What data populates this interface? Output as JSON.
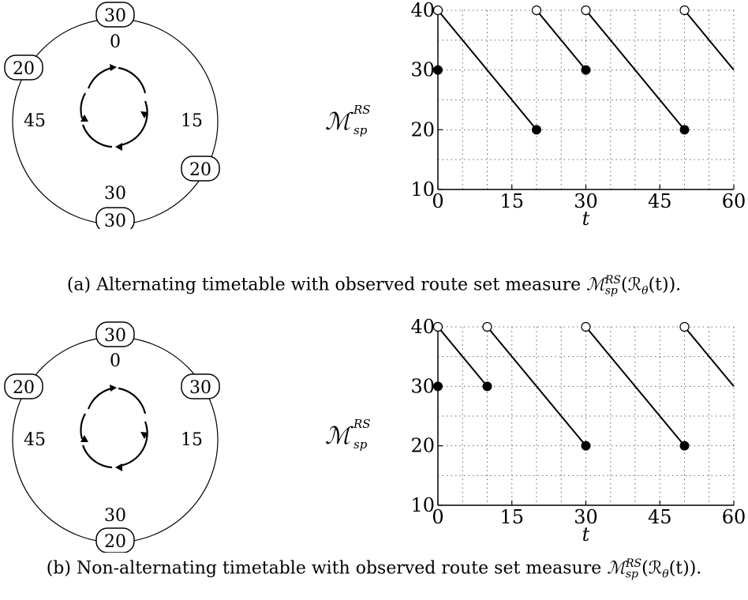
{
  "panels": [
    {
      "caption_prefix": "(a) Alternating timetable with observed route set measure",
      "measure_label": "ℳ",
      "measure_sup": "RS",
      "measure_sub": "sp",
      "caption_arg": "(ℛ",
      "caption_theta": "θ",
      "caption_tail": "(t)).",
      "ring": {
        "badges": [
          {
            "label": "30",
            "pos": "top"
          },
          {
            "label": "20",
            "pos": "upper-left"
          },
          {
            "label": "20",
            "pos": "lower-right"
          },
          {
            "label": "30",
            "pos": "bottom"
          }
        ],
        "segment_labels": [
          "0",
          "15",
          "30",
          "45"
        ]
      }
    },
    {
      "caption_prefix": "(b) Non-alternating timetable with observed route set measure",
      "measure_label": "ℳ",
      "measure_sup": "RS",
      "measure_sub": "sp",
      "caption_arg": "(ℛ",
      "caption_theta": "θ",
      "caption_tail": "(t)).",
      "ring": {
        "badges": [
          {
            "label": "30",
            "pos": "top"
          },
          {
            "label": "20",
            "pos": "upper-left"
          },
          {
            "label": "30",
            "pos": "upper-right"
          },
          {
            "label": "20",
            "pos": "bottom"
          }
        ],
        "segment_labels": [
          "0",
          "15",
          "30",
          "45"
        ]
      }
    }
  ],
  "chart_data": [
    {
      "type": "line",
      "xlabel": "t",
      "ylabel": "",
      "xlim": [
        0,
        60
      ],
      "ylim": [
        10,
        40
      ],
      "xticks": [
        0,
        15,
        30,
        45,
        60
      ],
      "yticks": [
        10,
        20,
        30,
        40
      ],
      "grid": true,
      "segments": [
        {
          "x": [
            0,
            20
          ],
          "y": [
            40,
            20
          ]
        },
        {
          "x": [
            20,
            30
          ],
          "y": [
            40,
            30
          ]
        },
        {
          "x": [
            30,
            50
          ],
          "y": [
            40,
            20
          ]
        },
        {
          "x": [
            50,
            60
          ],
          "y": [
            40,
            30
          ]
        }
      ],
      "open_points": [
        [
          0,
          40
        ],
        [
          20,
          40
        ],
        [
          30,
          40
        ],
        [
          50,
          40
        ]
      ],
      "filled_points": [
        [
          0,
          30
        ],
        [
          20,
          20
        ],
        [
          30,
          30
        ],
        [
          50,
          20
        ]
      ]
    },
    {
      "type": "line",
      "xlabel": "t",
      "ylabel": "",
      "xlim": [
        0,
        60
      ],
      "ylim": [
        10,
        40
      ],
      "xticks": [
        0,
        15,
        30,
        45,
        60
      ],
      "yticks": [
        10,
        20,
        30,
        40
      ],
      "grid": true,
      "segments": [
        {
          "x": [
            0,
            10
          ],
          "y": [
            40,
            30
          ]
        },
        {
          "x": [
            10,
            30
          ],
          "y": [
            40,
            20
          ]
        },
        {
          "x": [
            30,
            50
          ],
          "y": [
            40,
            20
          ]
        },
        {
          "x": [
            50,
            60
          ],
          "y": [
            40,
            30
          ]
        }
      ],
      "open_points": [
        [
          0,
          40
        ],
        [
          10,
          40
        ],
        [
          30,
          40
        ],
        [
          50,
          40
        ]
      ],
      "filled_points": [
        [
          0,
          30
        ],
        [
          10,
          30
        ],
        [
          30,
          20
        ],
        [
          50,
          20
        ]
      ]
    }
  ]
}
